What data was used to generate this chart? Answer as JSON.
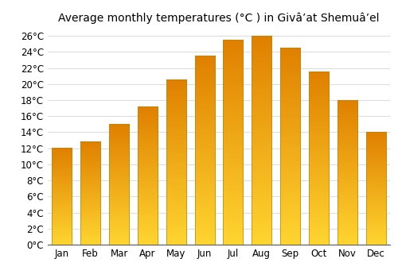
{
  "title": "Average monthly temperatures (°C ) in Givâʼat Shemuâʼel",
  "months": [
    "Jan",
    "Feb",
    "Mar",
    "Apr",
    "May",
    "Jun",
    "Jul",
    "Aug",
    "Sep",
    "Oct",
    "Nov",
    "Dec"
  ],
  "values": [
    12.0,
    12.8,
    15.0,
    17.2,
    20.5,
    23.5,
    25.5,
    26.0,
    24.5,
    21.5,
    18.0,
    14.0
  ],
  "bar_color_mid": "#FFA500",
  "bar_color_top": "#FFD000",
  "bar_color_bottom": "#E08000",
  "ylim": [
    0,
    27
  ],
  "yticks": [
    0,
    2,
    4,
    6,
    8,
    10,
    12,
    14,
    16,
    18,
    20,
    22,
    24,
    26
  ],
  "ytick_labels": [
    "0°C",
    "2°C",
    "4°C",
    "6°C",
    "8°C",
    "10°C",
    "12°C",
    "14°C",
    "16°C",
    "18°C",
    "20°C",
    "22°C",
    "24°C",
    "26°C"
  ],
  "background_color": "#ffffff",
  "grid_color": "#dddddd",
  "title_fontsize": 10,
  "tick_fontsize": 8.5,
  "bar_edge_color": "#b8860b",
  "bar_width": 0.7
}
